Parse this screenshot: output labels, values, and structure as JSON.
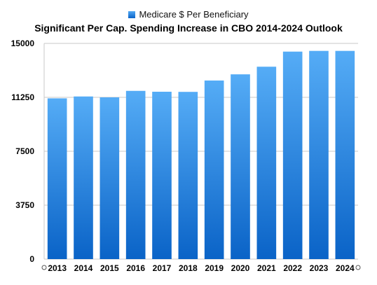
{
  "chart_data": {
    "type": "bar",
    "title": "Significant Per Cap. Spending Increase in CBO 2014-2024 Outlook",
    "legend": {
      "position": "top",
      "entries": [
        "Medicare $ Per Beneficiary"
      ]
    },
    "categories": [
      "2013",
      "2014",
      "2015",
      "2016",
      "2017",
      "2018",
      "2019",
      "2020",
      "2021",
      "2022",
      "2023",
      "2024"
    ],
    "series": [
      {
        "name": "Medicare $ Per Beneficiary",
        "values": [
          11180,
          11310,
          11250,
          11700,
          11640,
          11630,
          12420,
          12850,
          13380,
          14430,
          14480,
          14480
        ]
      }
    ],
    "y_ticks": [
      "0",
      "3750",
      "7500",
      "11250",
      "15000"
    ],
    "ylim": [
      0,
      15000
    ],
    "grid": true,
    "colors": {
      "bar_top": "#55acf6",
      "bar_bottom": "#0a63c7",
      "grid": "#c8c8c8"
    }
  }
}
